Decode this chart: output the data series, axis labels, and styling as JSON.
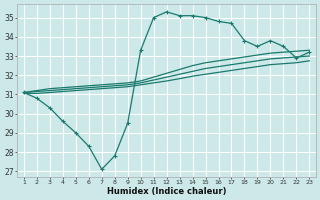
{
  "xlabel": "Humidex (Indice chaleur)",
  "bg_color": "#cce8e8",
  "grid_color": "#ffffff",
  "line_color": "#1a7a6e",
  "xlim": [
    0.5,
    23.5
  ],
  "ylim": [
    26.7,
    35.7
  ],
  "yticks": [
    27,
    28,
    29,
    30,
    31,
    32,
    33,
    34,
    35
  ],
  "xticks": [
    1,
    2,
    3,
    4,
    5,
    6,
    7,
    8,
    9,
    10,
    11,
    12,
    13,
    14,
    15,
    16,
    17,
    18,
    19,
    20,
    21,
    22,
    23
  ],
  "line1": {
    "x": [
      1,
      2,
      3,
      4,
      5,
      6,
      7,
      8,
      9,
      10,
      11,
      12,
      13,
      14,
      15,
      16,
      17,
      18,
      19,
      20,
      21,
      22,
      23
    ],
    "y": [
      31.1,
      30.8,
      30.3,
      29.6,
      29.0,
      28.3,
      27.1,
      27.8,
      29.5,
      33.3,
      35.0,
      35.3,
      35.1,
      35.1,
      35.0,
      34.8,
      34.7,
      33.8,
      33.5,
      33.8,
      33.5,
      32.9,
      33.2
    ]
  },
  "line2": {
    "x": [
      1,
      2,
      3,
      4,
      5,
      6,
      7,
      8,
      9,
      10,
      11,
      12,
      13,
      14,
      15,
      16,
      17,
      18,
      19,
      20,
      21,
      22,
      23
    ],
    "y": [
      31.1,
      31.2,
      31.3,
      31.35,
      31.4,
      31.45,
      31.5,
      31.55,
      31.6,
      31.7,
      31.9,
      32.1,
      32.3,
      32.5,
      32.65,
      32.75,
      32.85,
      32.95,
      33.05,
      33.15,
      33.2,
      33.25,
      33.3
    ]
  },
  "line3": {
    "x": [
      1,
      2,
      3,
      4,
      5,
      6,
      7,
      8,
      9,
      10,
      11,
      12,
      13,
      14,
      15,
      16,
      17,
      18,
      19,
      20,
      21,
      22,
      23
    ],
    "y": [
      31.1,
      31.15,
      31.2,
      31.25,
      31.3,
      31.35,
      31.4,
      31.45,
      31.5,
      31.6,
      31.75,
      31.9,
      32.05,
      32.2,
      32.35,
      32.45,
      32.55,
      32.65,
      32.75,
      32.85,
      32.9,
      32.95,
      33.0
    ]
  },
  "line4": {
    "x": [
      1,
      2,
      3,
      4,
      5,
      6,
      7,
      8,
      9,
      10,
      11,
      12,
      13,
      14,
      15,
      16,
      17,
      18,
      19,
      20,
      21,
      22,
      23
    ],
    "y": [
      31.05,
      31.05,
      31.1,
      31.15,
      31.2,
      31.25,
      31.3,
      31.35,
      31.4,
      31.5,
      31.6,
      31.7,
      31.82,
      31.95,
      32.05,
      32.15,
      32.25,
      32.35,
      32.45,
      32.55,
      32.6,
      32.65,
      32.75
    ]
  }
}
